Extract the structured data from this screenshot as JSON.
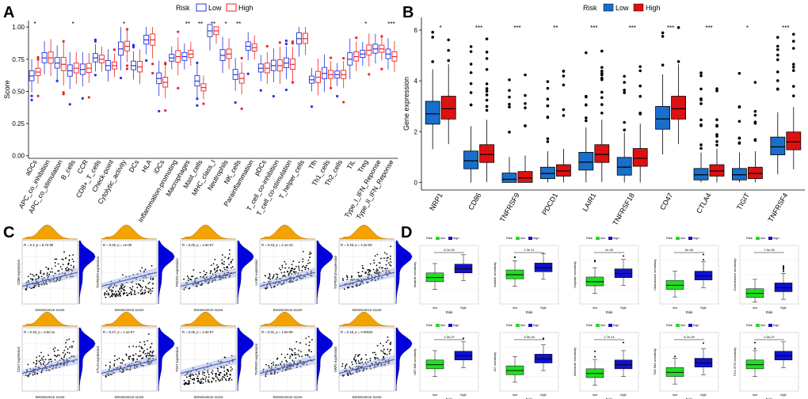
{
  "colors": {
    "low_A": "#2233dd",
    "high_A": "#ee2222",
    "low_B": "#1a6ecc",
    "high_B": "#dd1111",
    "low_D": "#22dd22",
    "high_D": "#1111cc",
    "density": "#f2a300",
    "density_right": "#0000dd",
    "fit": "#3355cc",
    "band": "#aab4dd"
  },
  "panels": {
    "A": {
      "letter": "A"
    },
    "B": {
      "letter": "B"
    },
    "C": {
      "letter": "C"
    },
    "D": {
      "letter": "D"
    }
  },
  "chart_data": [
    {
      "id": "A",
      "type": "box",
      "title": "",
      "legend_title": "Risk",
      "legend": [
        "Low",
        "High"
      ],
      "ylabel": "Score",
      "ylim": [
        0,
        1.0
      ],
      "yticks": [
        "0.00",
        "0.25",
        "0.50",
        "0.75",
        "1.00"
      ],
      "categories": [
        "aDCs",
        "APC_co_inhibition",
        "APC_co_stimulation",
        "B_cells",
        "CCR",
        "CD8+_T_cells",
        "Check-point",
        "Cytolytic_activity",
        "DCs",
        "HLA",
        "iDCs",
        "Inflammation-promoting",
        "Macrophages",
        "Mast_cells",
        "MHC_class_I",
        "Neutrophils",
        "NK_cells",
        "Parainflammation",
        "pDCs",
        "T_cell_co-inhibition",
        "T_cell_co-stimulation",
        "T_helper_cells",
        "Tfh",
        "Th1_cells",
        "Th2_cells",
        "TIL",
        "Treg",
        "Type_I_IFN_Reponse",
        "Type_II_IFN_Reponse"
      ],
      "significance": [
        "*",
        "",
        "",
        "*",
        "",
        "",
        "",
        "*",
        "",
        "",
        "",
        "",
        "**",
        "**",
        "**",
        "*",
        "**",
        "",
        "",
        "",
        "",
        "",
        "",
        "",
        "",
        "",
        "*",
        "",
        "***"
      ],
      "series": [
        {
          "name": "Low",
          "median": [
            0.62,
            0.76,
            0.72,
            0.66,
            0.67,
            0.76,
            0.7,
            0.83,
            0.7,
            0.9,
            0.6,
            0.76,
            0.77,
            0.58,
            0.97,
            0.78,
            0.63,
            0.85,
            0.68,
            0.7,
            0.72,
            0.91,
            0.59,
            0.64,
            0.63,
            0.75,
            0.79,
            0.83,
            0.79
          ]
        },
        {
          "name": "High",
          "median": [
            0.65,
            0.76,
            0.71,
            0.68,
            0.68,
            0.75,
            0.7,
            0.85,
            0.69,
            0.9,
            0.57,
            0.77,
            0.79,
            0.53,
            0.97,
            0.79,
            0.6,
            0.84,
            0.68,
            0.7,
            0.71,
            0.91,
            0.61,
            0.63,
            0.63,
            0.77,
            0.82,
            0.83,
            0.77
          ]
        }
      ]
    },
    {
      "id": "B",
      "type": "box",
      "title": "",
      "legend_title": "Risk",
      "legend": [
        "Low",
        "High"
      ],
      "ylabel": "Gene expression",
      "ylim": [
        -0.3,
        6.5
      ],
      "yticks": [
        "0",
        "2",
        "4",
        "6"
      ],
      "categories": [
        "NRP1",
        "CD86",
        "TNFRSF9",
        "PDCD1",
        "LAIR1",
        "TNFRSF18",
        "CD47",
        "CTLA4",
        "TIGIT",
        "TNFRSF4"
      ],
      "significance": [
        "*",
        "***",
        "***",
        "**",
        "***",
        "***",
        "***",
        "***",
        "*",
        "***"
      ],
      "series": [
        {
          "name": "Low",
          "median": [
            2.7,
            0.85,
            0.12,
            0.35,
            0.8,
            0.6,
            2.5,
            0.3,
            0.3,
            1.4
          ]
        },
        {
          "name": "High",
          "median": [
            2.9,
            1.1,
            0.18,
            0.45,
            1.1,
            0.95,
            2.9,
            0.45,
            0.35,
            1.6
          ]
        }
      ]
    },
    {
      "id": "C",
      "type": "scatter",
      "xlabel": "Senescence score",
      "plots": [
        {
          "ylabel": "CD86 expression",
          "stat": "R = 0.3, p = 8.7e-09"
        },
        {
          "ylabel": "TNFRSF9 expression",
          "stat": "R = 0.25, p = 1e-06"
        },
        {
          "ylabel": "PDCD1 expression",
          "stat": "R = 0.25, p = 2.9e-07"
        },
        {
          "ylabel": "LAIR1 expression",
          "stat": "R = 0.33, p = 2.1e-10"
        },
        {
          "ylabel": "TNFRSF18 expression",
          "stat": "R = 0.29, p = 4.2e-09"
        },
        {
          "ylabel": "CD47 expression",
          "stat": "R = 0.32, p = 5.5e-11"
        },
        {
          "ylabel": "CTLA4 expression",
          "stat": "R = 0.27, p = 1.1e-07"
        },
        {
          "ylabel": "TIGIT expression",
          "stat": "R = 0.25, p = 2.3e-07"
        },
        {
          "ylabel": "TNFRSF4 expression",
          "stat": "R = 0.31, p = 1.5e-09"
        },
        {
          "ylabel": "NRP1 expression",
          "stat": "R = 0.18, p = 0.00033"
        }
      ]
    },
    {
      "id": "D",
      "type": "box",
      "legend_title": "Risk",
      "legend": [
        "low",
        "high"
      ],
      "xlabel": "Risk",
      "categories": [
        "low",
        "high"
      ],
      "plots": [
        {
          "ylabel": "Imatinib sensitivity",
          "pvalue": "6.2e-05",
          "median": [
            0.45,
            0.6
          ]
        },
        {
          "ylabel": "AxitinIb sensitivity",
          "pvalue": "2.3e-11",
          "median": [
            0.5,
            0.62
          ]
        },
        {
          "ylabel": "Cisplatin sensitivity",
          "pvalue": "1e-05",
          "median": [
            0.38,
            0.52
          ]
        },
        {
          "ylabel": "Midostaurin sensitivity",
          "pvalue": "5e-06",
          "median": [
            0.32,
            0.48
          ]
        },
        {
          "ylabel": "Gemcitabine sensitivity",
          "pvalue": "7.6e-06",
          "median": [
            0.18,
            0.28
          ]
        },
        {
          "ylabel": "ABT.888 sensitivity",
          "pvalue": "1.5e-07",
          "median": [
            0.45,
            0.6
          ]
        },
        {
          "ylabel": "AG sensitivity",
          "pvalue": "3.5e-16",
          "median": [
            0.35,
            0.55
          ]
        },
        {
          "ylabel": "Metformin sensitivity",
          "pvalue": "2.7e-11",
          "median": [
            0.3,
            0.45
          ]
        },
        {
          "ylabel": "TAE.684 sensitivity",
          "pvalue": "5.1e-09",
          "median": [
            0.32,
            0.48
          ]
        },
        {
          "ylabel": "PLX.4720 sensitivity",
          "pvalue": "1.6e-07",
          "median": [
            0.45,
            0.6
          ]
        }
      ]
    }
  ]
}
